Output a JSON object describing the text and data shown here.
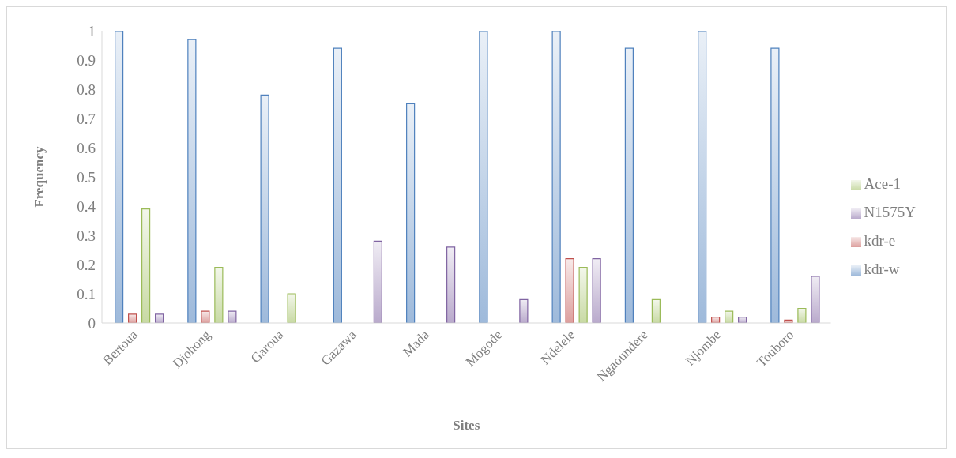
{
  "chart_data": {
    "type": "bar",
    "xlabel": "Sites",
    "ylabel": "Frequency",
    "categories": [
      "Bertoua",
      "Djohong",
      "Garoua",
      "Gazawa",
      "Mada",
      "Mogode",
      "Ndelele",
      "Ngaoundere",
      "Njombe",
      "Touboro"
    ],
    "series": [
      {
        "name": "kdr-w",
        "color": "#4f81bd",
        "values": [
          1,
          0.97,
          0.78,
          0.94,
          0.75,
          1,
          1,
          0.94,
          1,
          0.94
        ]
      },
      {
        "name": "kdr-e",
        "color": "#c0504d",
        "values": [
          0.03,
          0.04,
          0,
          0,
          0,
          0,
          0.22,
          0,
          0.02,
          0.01
        ]
      },
      {
        "name": "Ace-1",
        "color": "#9bbb59",
        "values": [
          0.39,
          0.19,
          0.1,
          0,
          0,
          0,
          0.19,
          0.08,
          0.04,
          0.05
        ]
      },
      {
        "name": "N1575Y",
        "color": "#8064a2",
        "values": [
          0.03,
          0.04,
          0,
          0.28,
          0.26,
          0.08,
          0.22,
          0,
          0.02,
          0.16
        ]
      }
    ],
    "ylim": [
      0,
      1
    ],
    "yticks": [
      0,
      0.1,
      0.2,
      0.3,
      0.4,
      0.5,
      0.6,
      0.7,
      0.8,
      0.9,
      1
    ],
    "grid": false,
    "legend": "right"
  }
}
